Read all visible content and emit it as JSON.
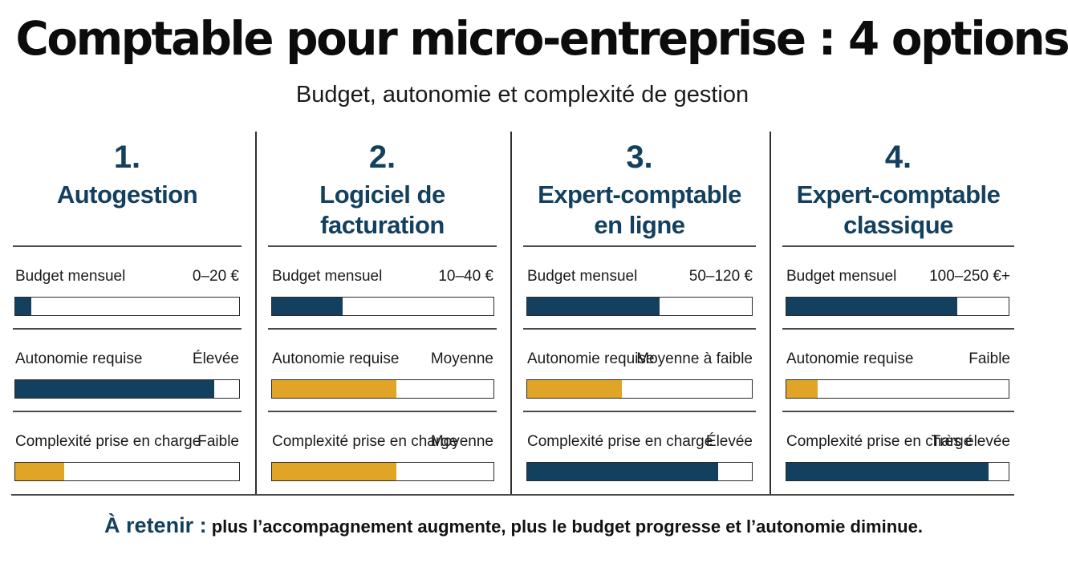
{
  "title": "Comptable pour micro-entreprise : 4 options",
  "subtitle": "Budget, autonomie et complexité de gestion",
  "colors": {
    "navy": "#14405f",
    "gold": "#e0a526",
    "border": "#2a2a2a"
  },
  "panels": [
    {
      "number": "1.",
      "name_line1": "Autogestion",
      "name_line2": "",
      "metrics": [
        {
          "label": "Budget mensuel",
          "value": "0–20 €",
          "level": 0.07,
          "color": "navy"
        },
        {
          "label": "Autonomie requise",
          "value": "Élevée",
          "level": 0.89,
          "color": "navy"
        },
        {
          "label": "Complexité prise en charge",
          "value": "Faible",
          "level": 0.22,
          "color": "gold"
        }
      ]
    },
    {
      "number": "2.",
      "name_line1": "Logiciel de",
      "name_line2": "facturation",
      "metrics": [
        {
          "label": "Budget mensuel",
          "value": "10–40 €",
          "level": 0.32,
          "color": "navy"
        },
        {
          "label": "Autonomie requise",
          "value": "Moyenne",
          "level": 0.56,
          "color": "gold"
        },
        {
          "label": "Complexité prise en charge",
          "value": "Moyenne",
          "level": 0.56,
          "color": "gold"
        }
      ]
    },
    {
      "number": "3.",
      "name_line1": "Expert-comptable",
      "name_line2": "en ligne",
      "metrics": [
        {
          "label": "Budget mensuel",
          "value": "50–120 €",
          "level": 0.59,
          "color": "navy"
        },
        {
          "label": "Autonomie requise",
          "value": "Moyenne à faible",
          "level": 0.42,
          "color": "gold"
        },
        {
          "label": "Complexité prise en charge",
          "value": "Élevée",
          "level": 0.85,
          "color": "navy"
        }
      ]
    },
    {
      "number": "4.",
      "name_line1": "Expert-comptable",
      "name_line2": "classique",
      "metrics": [
        {
          "label": "Budget mensuel",
          "value": "100–250 €+",
          "level": 0.77,
          "color": "navy"
        },
        {
          "label": "Autonomie requise",
          "value": "Faible",
          "level": 0.14,
          "color": "gold"
        },
        {
          "label": "Complexité prise en charge",
          "value": "Très élevée",
          "level": 0.91,
          "color": "navy"
        }
      ]
    }
  ],
  "footer": {
    "lead": "À retenir :",
    "text": " plus l’accompagnement augmente, plus le budget progresse et l’autonomie diminue."
  }
}
